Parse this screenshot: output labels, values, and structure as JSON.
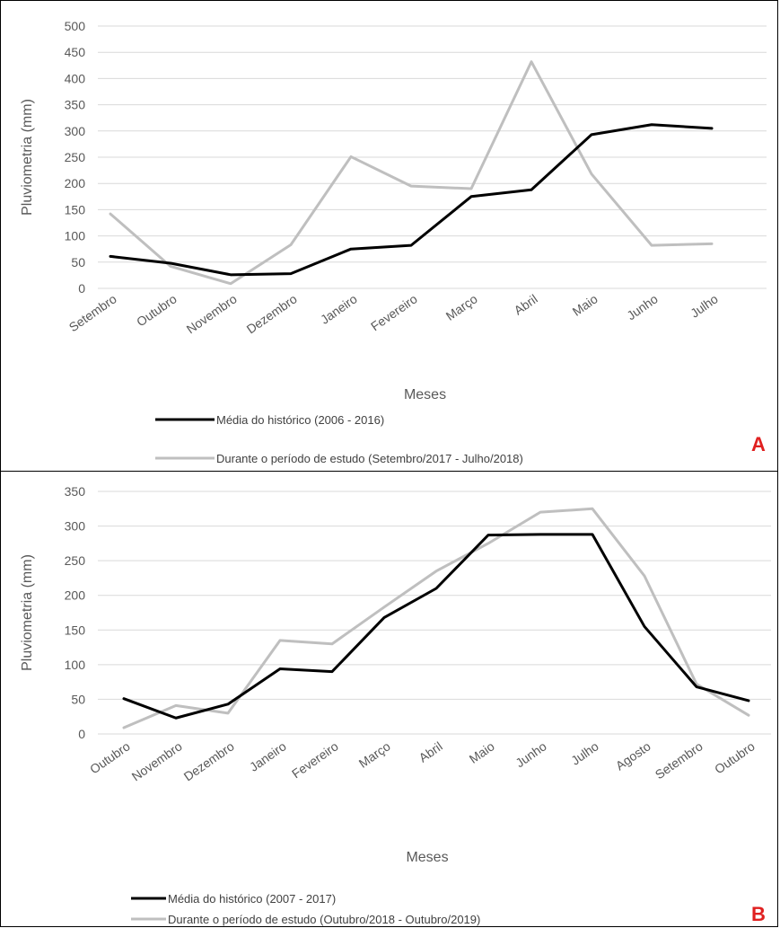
{
  "chart_data": [
    {
      "type": "line",
      "panel_label": "A",
      "xlabel": "Meses",
      "ylabel": "Pluviometria (mm)",
      "ylim": [
        0,
        500
      ],
      "yticks": [
        0,
        50,
        100,
        150,
        200,
        250,
        300,
        350,
        400,
        450,
        500
      ],
      "grid": true,
      "legend_position": "bottom-left",
      "categories": [
        "Setembro",
        "Outubro",
        "Novembro",
        "Dezembro",
        "Janeiro",
        "Fevereiro",
        "Março",
        "Abril",
        "Maio",
        "Junho",
        "Julho"
      ],
      "series": [
        {
          "name": "Média do histórico (2006 - 2016)",
          "color": "#000000",
          "values": [
            61,
            48,
            26,
            28,
            75,
            82,
            175,
            188,
            293,
            312,
            305
          ]
        },
        {
          "name": "Durante o período de estudo (Setembro/2017 - Julho/2018)",
          "color": "#bfbfbf",
          "values": [
            142,
            42,
            9,
            83,
            251,
            195,
            190,
            432,
            218,
            82,
            85
          ]
        }
      ]
    },
    {
      "type": "line",
      "panel_label": "B",
      "xlabel": "Meses",
      "ylabel": "Pluviometria (mm)",
      "ylim": [
        0,
        350
      ],
      "yticks": [
        0,
        50,
        100,
        150,
        200,
        250,
        300,
        350
      ],
      "grid": true,
      "legend_position": "bottom-left",
      "categories": [
        "Outubro",
        "Novembro",
        "Dezembro",
        "Janeiro",
        "Fevereiro",
        "Março",
        "Abril",
        "Maio",
        "Junho",
        "Julho",
        "Agosto",
        "Setembro",
        "Outubro"
      ],
      "series": [
        {
          "name": "Média do histórico  (2007 - 2017)",
          "color": "#000000",
          "values": [
            51,
            23,
            43,
            94,
            90,
            168,
            210,
            287,
            288,
            288,
            155,
            68,
            48
          ]
        },
        {
          "name": "Durante o período de estudo (Outubro/2018 - Outubro/2019)",
          "color": "#bfbfbf",
          "values": [
            9,
            41,
            30,
            135,
            130,
            183,
            235,
            275,
            320,
            325,
            228,
            72,
            27
          ]
        }
      ]
    }
  ]
}
